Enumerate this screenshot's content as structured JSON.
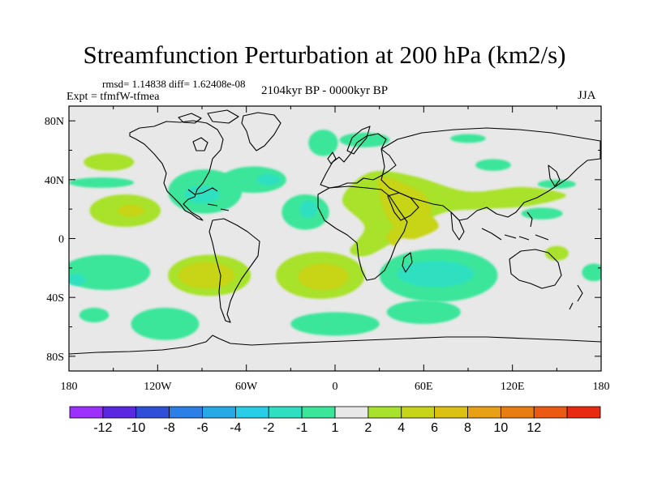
{
  "title": "Streamfunction Perturbation at 200 hPa (km2/s)",
  "stats_line": "rmsd= 1.14838  diff= 1.62408e-08",
  "experiment": "Expt = tfmfW-tfmea",
  "period": "2104kyr BP - 0000kyr BP",
  "season": "JJA",
  "lat_ticks": [
    {
      "lat": 80,
      "label": "80N"
    },
    {
      "lat": 40,
      "label": "40N"
    },
    {
      "lat": 0,
      "label": "0"
    },
    {
      "lat": -40,
      "label": "40S"
    },
    {
      "lat": -80,
      "label": "80S"
    }
  ],
  "lon_ticks": [
    {
      "lon": -180,
      "label": "180"
    },
    {
      "lon": -120,
      "label": "120W"
    },
    {
      "lon": -60,
      "label": "60W"
    },
    {
      "lon": 0,
      "label": "0"
    },
    {
      "lon": 60,
      "label": "60E"
    },
    {
      "lon": 120,
      "label": "120E"
    },
    {
      "lon": 180,
      "label": "180"
    }
  ],
  "colorbar": {
    "colors": [
      "#9b30ff",
      "#5a28e0",
      "#2f4fd8",
      "#2b7fe6",
      "#27a9e8",
      "#28cde8",
      "#2ee0c0",
      "#3ae69a",
      "#e8e8e8",
      "#a8e22c",
      "#c8d418",
      "#dcc012",
      "#e8a014",
      "#e87e12",
      "#ea5a12",
      "#e82a12"
    ],
    "labels": [
      "-12",
      "-10",
      "-8",
      "-6",
      "-4",
      "-2",
      "-1",
      "1",
      "2",
      "4",
      "6",
      "8",
      "10",
      "12"
    ]
  },
  "map": {
    "background_color": "#e8e8e8",
    "anomaly_blobs": [
      {
        "name": "anomaly-north-pacific-positive",
        "lon": -153,
        "lat": 52,
        "rlon": 17,
        "rlat": 6,
        "level": 2
      },
      {
        "name": "anomaly-central-pacific-negative",
        "lon": -158,
        "lat": 38,
        "rlon": 22,
        "rlat": 3.5,
        "level": -1
      },
      {
        "name": "anomaly-tropical-pacific-positive",
        "lon": -142,
        "lat": 19,
        "rlon": 24,
        "rlat": 11,
        "level": 2
      },
      {
        "name": "anomaly-tropical-pacific-core",
        "lon": -138,
        "lat": 19,
        "rlon": 9,
        "rlat": 4,
        "level": 4
      },
      {
        "name": "anomaly-north-america-negative",
        "lon": -88,
        "lat": 32,
        "rlon": 25,
        "rlat": 15,
        "level": -1
      },
      {
        "name": "anomaly-gulf-negative-core",
        "lon": -90,
        "lat": 30,
        "rlon": 12,
        "rlat": 6,
        "level": -2
      },
      {
        "name": "anomaly-atlantic-band-negative",
        "lon": -55,
        "lat": 40,
        "rlon": 22,
        "rlat": 9,
        "level": -1
      },
      {
        "name": "anomaly-atlantic-band-core",
        "lon": -45,
        "lat": 40,
        "rlon": 8,
        "rlat": 4,
        "level": -2
      },
      {
        "name": "anomaly-tropical-atlantic-negative",
        "lon": -20,
        "lat": 18,
        "rlon": 16,
        "rlat": 12,
        "level": -1
      },
      {
        "name": "anomaly-tropical-atlantic-core",
        "lon": -18,
        "lat": 20,
        "rlon": 6,
        "rlat": 6,
        "level": -2
      },
      {
        "name": "anomaly-north-atlantic-negative",
        "lon": -8,
        "lat": 65,
        "rlon": 10,
        "rlat": 9,
        "level": -1
      },
      {
        "name": "anomaly-europe-negative",
        "lon": 20,
        "lat": 67,
        "rlon": 17,
        "rlat": 5,
        "level": -1
      },
      {
        "name": "anomaly-arctic-negative",
        "lon": 90,
        "lat": 68,
        "rlon": 12,
        "rlat": 3,
        "level": -1
      },
      {
        "name": "anomaly-siberia-negative",
        "lon": 107,
        "lat": 50,
        "rlon": 12,
        "rlat": 4,
        "level": -1
      },
      {
        "name": "anomaly-north-pacific-west-negative",
        "lon": 150,
        "lat": 37,
        "rlon": 13,
        "rlat": 3,
        "level": -1
      },
      {
        "name": "anomaly-west-pacific-negative",
        "lon": 140,
        "lat": 17,
        "rlon": 14,
        "rlat": 4,
        "level": -1
      },
      {
        "name": "anomaly-east-pacific-south-negative",
        "lon": -155,
        "lat": -23,
        "rlon": 30,
        "rlat": 12,
        "level": -1
      },
      {
        "name": "anomaly-east-pacific-south-core",
        "lon": -175,
        "lat": -28,
        "rlon": 6,
        "rlat": 4,
        "level": -2
      },
      {
        "name": "anomaly-south-pacific-negative",
        "lon": -163,
        "lat": -52,
        "rlon": 10,
        "rlat": 5,
        "level": -1
      },
      {
        "name": "anomaly-south-america-positive",
        "lon": -85,
        "lat": -25,
        "rlon": 28,
        "rlat": 14,
        "level": 2
      },
      {
        "name": "anomaly-south-america-core",
        "lon": -87,
        "lat": -25,
        "rlon": 19,
        "rlat": 9,
        "level": 4
      },
      {
        "name": "anomaly-south-pacific-east-negative",
        "lon": -115,
        "lat": -58,
        "rlon": 23,
        "rlat": 11,
        "level": -1
      },
      {
        "name": "anomaly-south-atlantic-positive",
        "lon": -10,
        "lat": -25,
        "rlon": 30,
        "rlat": 16,
        "level": 2
      },
      {
        "name": "anomaly-south-atlantic-core",
        "lon": -8,
        "lat": -26,
        "rlon": 17,
        "rlat": 9,
        "level": 4
      },
      {
        "name": "anomaly-south-atlantic-low-negative",
        "lon": 0,
        "lat": -58,
        "rlon": 30,
        "rlat": 8,
        "level": -1
      },
      {
        "name": "anomaly-indian-ocean-negative",
        "lon": 70,
        "lat": -25,
        "rlon": 40,
        "rlat": 18,
        "level": -1
      },
      {
        "name": "anomaly-indian-ocean-core",
        "lon": 68,
        "lat": -24,
        "rlon": 26,
        "rlat": 9,
        "level": -2
      },
      {
        "name": "anomaly-south-indian-negative",
        "lon": 60,
        "lat": -50,
        "rlon": 25,
        "rlat": 8,
        "level": -1
      },
      {
        "name": "anomaly-southwest-pacific-negative",
        "lon": 175,
        "lat": -23,
        "rlon": 8,
        "rlat": 6,
        "level": -1
      },
      {
        "name": "anomaly-tasman-positive",
        "lon": 150,
        "lat": -10,
        "rlon": 8,
        "rlat": 5,
        "level": 2
      }
    ],
    "positive_bands": [
      {
        "name": "anomaly-afro-asian-positive-band",
        "level": 2,
        "points": [
          [
            15,
            40
          ],
          [
            30,
            46
          ],
          [
            55,
            42
          ],
          [
            90,
            32
          ],
          [
            125,
            35
          ],
          [
            150,
            32
          ],
          [
            155,
            28
          ],
          [
            130,
            22
          ],
          [
            100,
            20
          ],
          [
            75,
            18
          ],
          [
            55,
            8
          ],
          [
            35,
            -5
          ],
          [
            20,
            -12
          ],
          [
            10,
            -8
          ],
          [
            20,
            8
          ],
          [
            5,
            25
          ]
        ]
      },
      {
        "name": "anomaly-afro-asian-positive-core",
        "level": 4,
        "points": [
          [
            30,
            42
          ],
          [
            45,
            38
          ],
          [
            60,
            30
          ],
          [
            65,
            18
          ],
          [
            55,
            10
          ],
          [
            45,
            5
          ],
          [
            35,
            15
          ],
          [
            30,
            30
          ]
        ]
      },
      {
        "name": "anomaly-east-africa-core",
        "level": 4,
        "points": [
          [
            60,
            18
          ],
          [
            70,
            8
          ],
          [
            55,
            0
          ],
          [
            45,
            0
          ],
          [
            40,
            -5
          ],
          [
            35,
            2
          ],
          [
            45,
            12
          ]
        ]
      }
    ]
  }
}
